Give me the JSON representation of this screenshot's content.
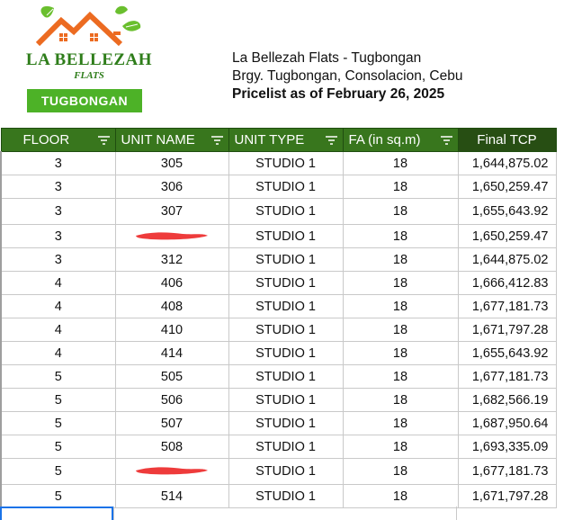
{
  "logo": {
    "name": "LA BELLEZAH",
    "subtitle": "FLATS",
    "badge": "TUGBONGAN",
    "colors": {
      "orange": "#ec6b21",
      "green": "#2e7d1a",
      "leaf": "#6abf2e",
      "badge": "#4db227"
    }
  },
  "header": {
    "line1": "La Bellezah Flats - Tugbongan",
    "line2": "Brgy. Tugbongan, Consolacion, Cebu",
    "line3": "Pricelist as of February 26, 2025"
  },
  "table": {
    "columns": [
      "FLOOR",
      "UNIT NAME",
      "UNIT TYPE",
      "FA (in sq.m)",
      "Final TCP"
    ],
    "header_color": "#38761d",
    "rows": [
      {
        "floor": "3",
        "unit": "305",
        "type": "STUDIO 1",
        "fa": "18",
        "tcp": "1,644,875.02"
      },
      {
        "floor": "3",
        "unit": "306",
        "type": "STUDIO 1",
        "fa": "18",
        "tcp": "1,650,259.47"
      },
      {
        "floor": "3",
        "unit": "307",
        "type": "STUDIO 1",
        "fa": "18",
        "tcp": "1,655,643.92"
      },
      {
        "floor": "3",
        "unit": "",
        "type": "STUDIO 1",
        "fa": "18",
        "tcp": "1,650,259.47",
        "redacted": true
      },
      {
        "floor": "3",
        "unit": "312",
        "type": "STUDIO 1",
        "fa": "18",
        "tcp": "1,644,875.02"
      },
      {
        "floor": "4",
        "unit": "406",
        "type": "STUDIO 1",
        "fa": "18",
        "tcp": "1,666,412.83"
      },
      {
        "floor": "4",
        "unit": "408",
        "type": "STUDIO 1",
        "fa": "18",
        "tcp": "1,677,181.73"
      },
      {
        "floor": "4",
        "unit": "410",
        "type": "STUDIO 1",
        "fa": "18",
        "tcp": "1,671,797.28"
      },
      {
        "floor": "4",
        "unit": "414",
        "type": "STUDIO 1",
        "fa": "18",
        "tcp": "1,655,643.92"
      },
      {
        "floor": "5",
        "unit": "505",
        "type": "STUDIO 1",
        "fa": "18",
        "tcp": "1,677,181.73"
      },
      {
        "floor": "5",
        "unit": "506",
        "type": "STUDIO 1",
        "fa": "18",
        "tcp": "1,682,566.19"
      },
      {
        "floor": "5",
        "unit": "507",
        "type": "STUDIO 1",
        "fa": "18",
        "tcp": "1,687,950.64"
      },
      {
        "floor": "5",
        "unit": "508",
        "type": "STUDIO 1",
        "fa": "18",
        "tcp": "1,693,335.09"
      },
      {
        "floor": "5",
        "unit": "",
        "type": "STUDIO 1",
        "fa": "18",
        "tcp": "1,677,181.73",
        "redacted": true
      },
      {
        "floor": "5",
        "unit": "514",
        "type": "STUDIO 1",
        "fa": "18",
        "tcp": "1,671,797.28"
      }
    ],
    "icons": {
      "filter": "filter-icon",
      "redaction": "red-scribble"
    },
    "redaction_color": "#ee3b3b"
  }
}
